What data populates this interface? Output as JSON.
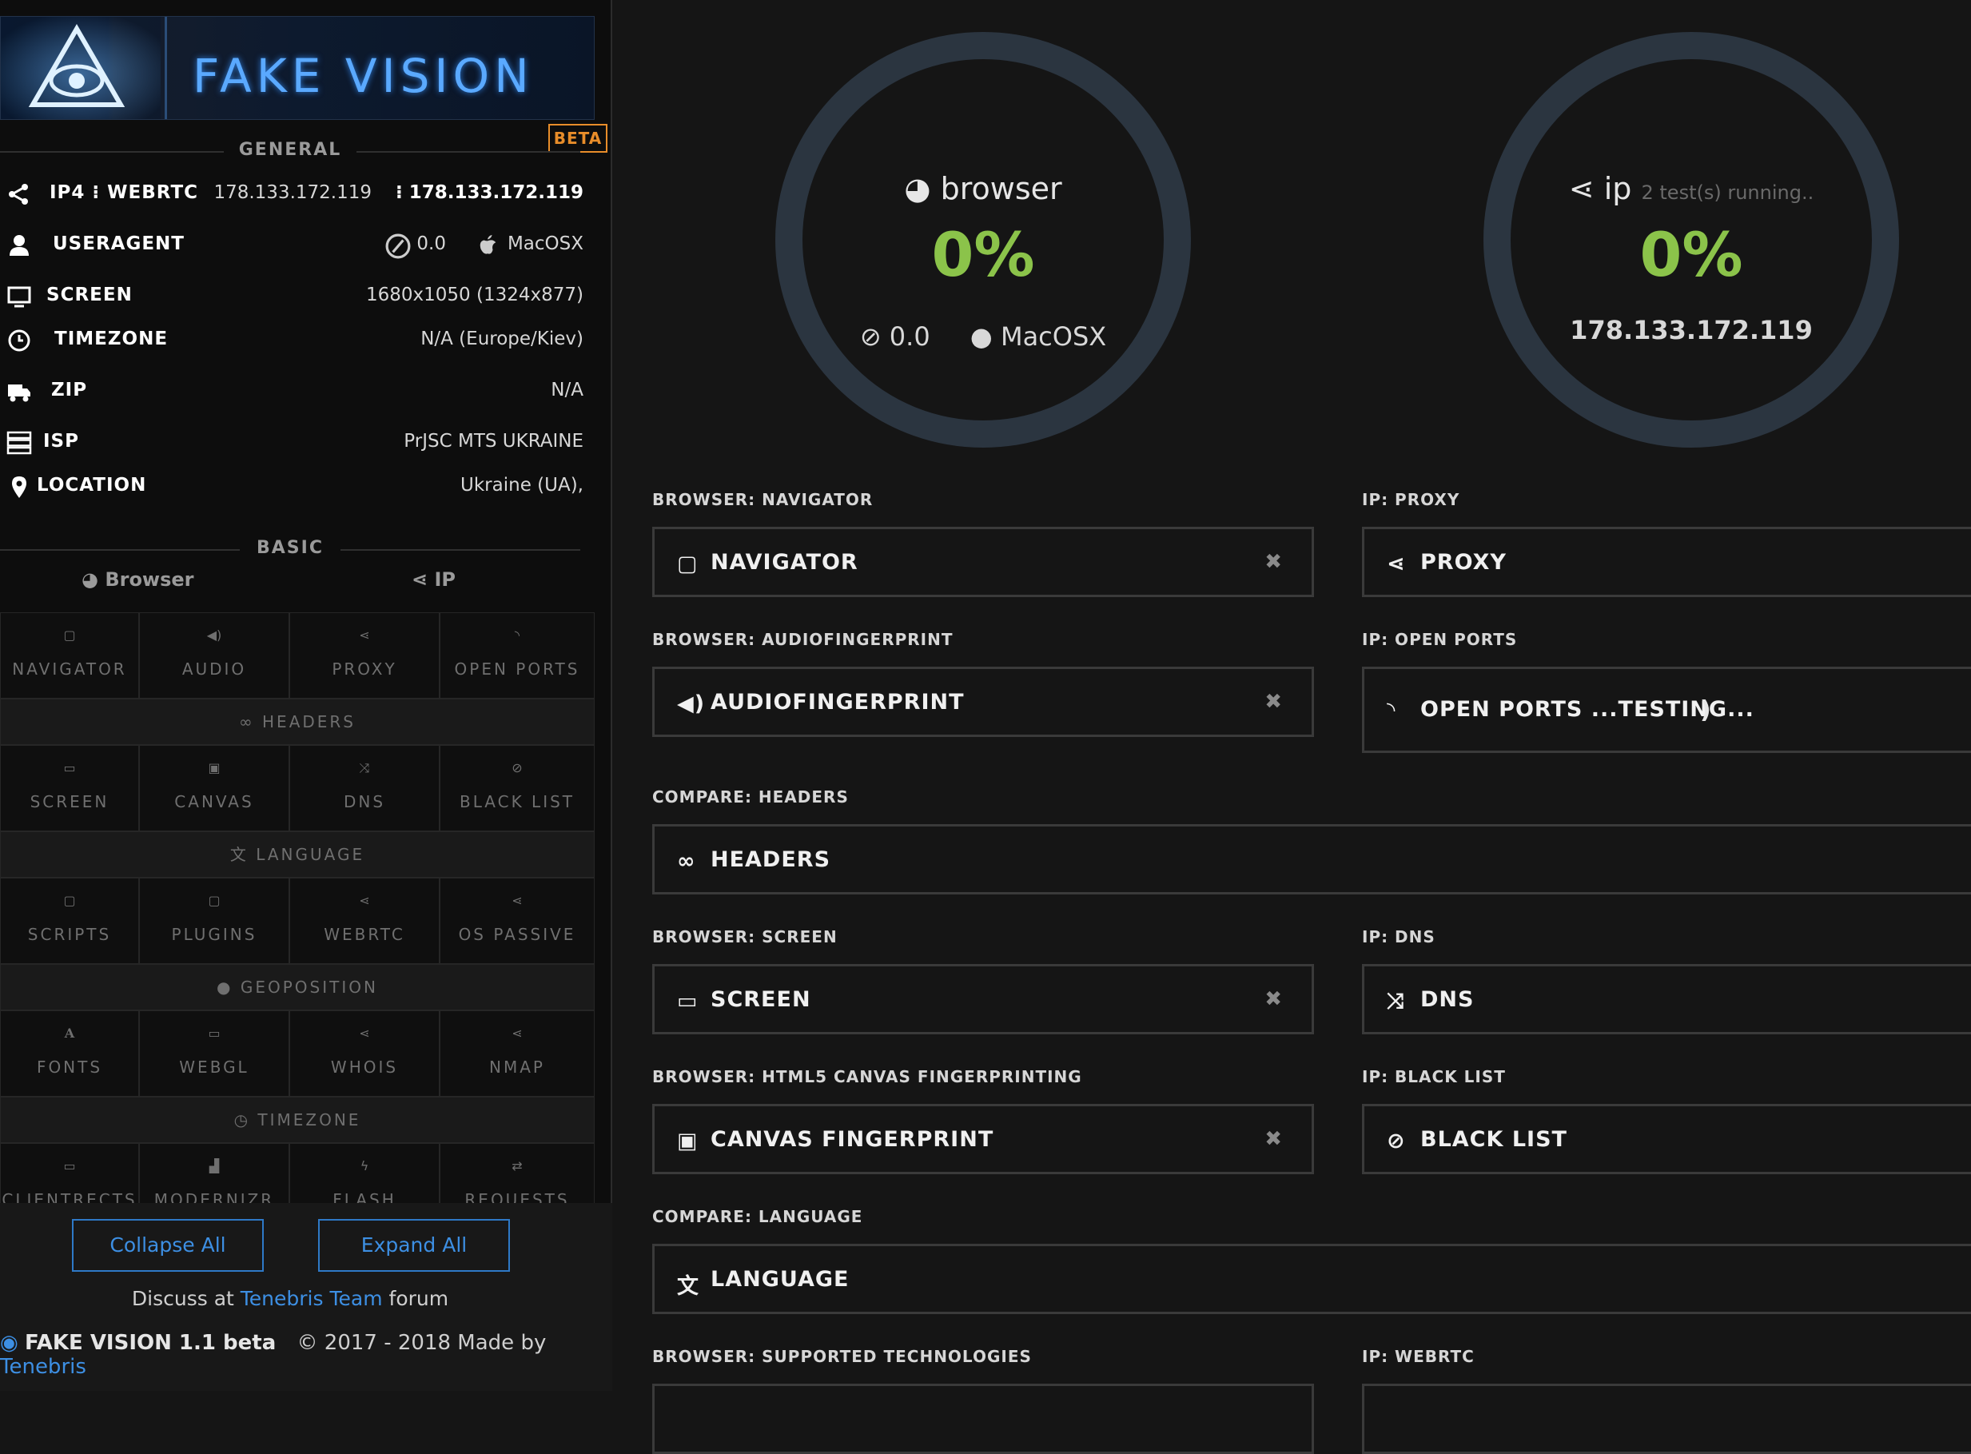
{
  "brand": {
    "logo_text": "FAKE VISION",
    "beta": "BETA"
  },
  "general": {
    "title": "GENERAL",
    "rows": [
      {
        "icon": "share-icon",
        "label": "IP4 ⁝ WEBRTC",
        "value": "178.133.172.119",
        "value2": "⁝ 178.133.172.119"
      },
      {
        "icon": "user-icon",
        "label": "USERAGENT",
        "value": "0.0",
        "value2": "MacOSX"
      },
      {
        "icon": "monitor-icon",
        "label": "SCREEN",
        "value": "1680x1050 (1324x877)"
      },
      {
        "icon": "clock-icon",
        "label": "TIMEZONE",
        "value": "N/A (Europe/Kiev)"
      },
      {
        "icon": "truck-icon",
        "label": "ZIP",
        "value": "N/A"
      },
      {
        "icon": "server-icon",
        "label": "ISP",
        "value": "PrJSC MTS UKRAINE"
      },
      {
        "icon": "pin-icon",
        "label": "LOCATION",
        "value": "Ukraine (UA),"
      }
    ]
  },
  "basic": {
    "title": "BASIC",
    "tabs": [
      "Browser",
      "IP"
    ],
    "rows": [
      [
        "NAVIGATOR",
        "AUDIO",
        "PROXY",
        "OPEN PORTS"
      ],
      [
        "SCREEN",
        "CANVAS",
        "DNS",
        "BLACK LIST"
      ],
      [
        "SCRIPTS",
        "PLUGINS",
        "WEBRTC",
        "OS PASSIVE"
      ],
      [
        "FONTS",
        "WEBGL",
        "WHOIS",
        "NMAP"
      ],
      [
        "CLIENTRECTS",
        "MODERNIZR",
        "FLASH",
        "REQUESTS"
      ]
    ],
    "bands": [
      "HEADERS",
      "LANGUAGE",
      "GEOPOSITION",
      "TIMEZONE"
    ]
  },
  "actions": {
    "collapse": "Collapse All",
    "expand": "Expand All"
  },
  "discuss": {
    "prefix": "Discuss at",
    "link": "Tenebris Team",
    "suffix": "forum"
  },
  "footer": {
    "name": "FAKE VISION 1.1 beta",
    "copy": "© 2017 - 2018 Made by",
    "link": "Tenebris"
  },
  "gauges": {
    "browser": {
      "title": "browser",
      "percent": "0%",
      "version": "0.0",
      "os": "MacOSX"
    },
    "ip": {
      "title": "ip",
      "note": "2 test(s) running..",
      "percent": "0%",
      "ip": "178.133.172.119"
    }
  },
  "panels": [
    {
      "label": "BROWSER: NAVIGATOR",
      "text": "NAVIGATOR",
      "icon": "page-icon",
      "close": "✖"
    },
    {
      "label": "IP: PROXY",
      "text": "PROXY",
      "icon": "share-icon"
    },
    {
      "label": "BROWSER: AUDIOFINGERPRINT",
      "text": "AUDIOFINGERPRINT",
      "icon": "speaker-icon",
      "close": "✖"
    },
    {
      "label": "IP: OPEN PORTS",
      "text": "OPEN PORTS ...TESTING...",
      "icon": "rss-icon"
    },
    {
      "label": "COMPARE: HEADERS",
      "text": "HEADERS",
      "icon": "link-icon"
    },
    {
      "label": "BROWSER: SCREEN",
      "text": "SCREEN",
      "icon": "monitor-icon",
      "close": "✖"
    },
    {
      "label": "IP: DNS",
      "text": "DNS",
      "icon": "shuffle-icon"
    },
    {
      "label": "BROWSER: HTML5 CANVAS FINGERPRINTING",
      "text": "CANVAS FINGERPRINT",
      "icon": "image-icon",
      "close": "✖"
    },
    {
      "label": "IP: BLACK LIST",
      "text": "BLACK LIST",
      "icon": "ban-icon"
    },
    {
      "label": "COMPARE: LANGUAGE",
      "text": "LANGUAGE",
      "icon": "translate-icon"
    },
    {
      "label": "BROWSER: SUPPORTED TECHNOLOGIES"
    },
    {
      "label": "IP: WEBRTC"
    }
  ]
}
